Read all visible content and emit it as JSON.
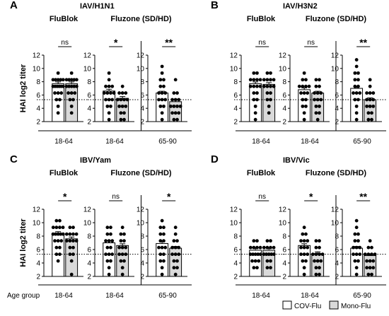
{
  "figure": {
    "row_axis_label": "HAI log2 titer",
    "age_group_label": "Age group",
    "legend": [
      {
        "label": "COV-Flu",
        "color": "#ffffff"
      },
      {
        "label": "Mono-Flu",
        "color": "#d9d9d9"
      }
    ],
    "colors": {
      "cov_fill": "#ffffff",
      "mono_fill": "#d9d9d9",
      "stroke": "#000000",
      "dot": "#000000",
      "threshold_line": "#000000"
    }
  },
  "chart_data": [
    {
      "type": "bar",
      "panel": "A",
      "title": "IAV/H1N1",
      "ylabel": "HAI log2 titer",
      "ylim": [
        2,
        12
      ],
      "yticks": [
        2,
        4,
        6,
        8,
        10,
        12
      ],
      "threshold": 5.3,
      "threshold_style": "dotted",
      "groups": [
        {
          "name": "FluBlok",
          "category": "18-64",
          "cov_mean": 7.7,
          "mono_mean": 7.7,
          "significance": "ns",
          "cov_points": [
            9.3,
            8.3,
            8.3,
            8.3,
            8.3,
            8.3,
            7.3,
            7.3,
            7.3,
            7.3,
            7.3,
            7.3,
            6.3,
            6.3,
            6.3,
            5.3,
            5.3,
            4.3,
            3.3
          ],
          "mono_points": [
            9.3,
            8.3,
            8.3,
            8.3,
            8.3,
            8.3,
            7.3,
            7.3,
            7.3,
            7.3,
            7.3,
            6.3,
            6.3,
            6.3,
            5.3,
            5.3,
            4.3,
            3.3
          ]
        },
        {
          "name": "Fluzone (SD/HD)",
          "category": "18-64",
          "cov_mean": 6.6,
          "mono_mean": 5.5,
          "significance": "*",
          "cov_points": [
            9.3,
            8.3,
            7.3,
            7.3,
            7.3,
            6.3,
            6.3,
            6.3,
            6.3,
            5.3,
            5.3,
            5.3,
            4.3,
            4.3,
            3.3,
            2.3
          ],
          "mono_points": [
            7.3,
            6.3,
            6.3,
            6.3,
            5.3,
            5.3,
            5.3,
            5.3,
            4.3,
            4.3,
            4.3,
            3.3,
            3.3,
            2.3,
            2.3
          ]
        },
        {
          "name": "Fluzone (SD/HD)",
          "category": "65-90",
          "cov_mean": 6.3,
          "mono_mean": 5.0,
          "significance": "**",
          "cov_points": [
            10.3,
            9.3,
            8.3,
            8.3,
            7.3,
            7.3,
            6.3,
            6.3,
            6.3,
            5.3,
            5.3,
            5.3,
            4.3,
            4.3,
            3.3,
            2.3
          ],
          "mono_points": [
            8.3,
            6.3,
            6.3,
            5.3,
            5.3,
            5.3,
            4.3,
            4.3,
            4.3,
            4.3,
            3.3,
            3.3,
            3.3,
            2.3,
            2.3
          ]
        }
      ]
    },
    {
      "type": "bar",
      "panel": "B",
      "title": "IAV/H3N2",
      "ylabel": "",
      "ylim": [
        2,
        12
      ],
      "yticks": [
        2,
        4,
        6,
        8,
        10,
        12
      ],
      "threshold": 5.3,
      "threshold_style": "dotted",
      "groups": [
        {
          "name": "FluBlok",
          "category": "18-64",
          "cov_mean": 7.7,
          "mono_mean": 7.6,
          "significance": "ns",
          "cov_points": [
            9.3,
            9.3,
            8.3,
            8.3,
            8.3,
            8.3,
            7.3,
            7.3,
            7.3,
            7.3,
            6.3,
            6.3,
            5.3,
            5.3,
            4.3,
            3.3,
            2.3
          ],
          "mono_points": [
            9.3,
            9.3,
            8.3,
            8.3,
            8.3,
            8.3,
            7.3,
            7.3,
            7.3,
            7.3,
            6.3,
            6.3,
            5.3,
            5.3,
            4.3,
            3.3
          ]
        },
        {
          "name": "Fluzone (SD/HD)",
          "category": "18-64",
          "cov_mean": 6.8,
          "mono_mean": 6.3,
          "significance": "ns",
          "cov_points": [
            9.3,
            8.3,
            8.3,
            7.3,
            7.3,
            7.3,
            7.3,
            6.3,
            6.3,
            6.3,
            5.3,
            5.3,
            4.3,
            4.3,
            3.3,
            2.3
          ],
          "mono_points": [
            8.3,
            8.3,
            7.3,
            7.3,
            6.3,
            6.3,
            6.3,
            5.3,
            5.3,
            5.3,
            4.3,
            4.3,
            3.3,
            3.3,
            2.3
          ]
        },
        {
          "name": "Fluzone (SD/HD)",
          "category": "65-90",
          "cov_mean": 7.0,
          "mono_mean": 5.3,
          "significance": "**",
          "cov_points": [
            11.3,
            10.3,
            9.3,
            9.3,
            8.3,
            8.3,
            7.3,
            7.3,
            6.3,
            6.3,
            6.3,
            5.3,
            5.3,
            4.3,
            3.3,
            2.3
          ],
          "mono_points": [
            8.3,
            7.3,
            6.3,
            6.3,
            6.3,
            5.3,
            5.3,
            5.3,
            4.3,
            4.3,
            4.3,
            3.3,
            3.3,
            2.3,
            2.3
          ]
        }
      ]
    },
    {
      "type": "bar",
      "panel": "C",
      "title": "IBV/Yam",
      "ylabel": "HAI log2 titer",
      "ylim": [
        2,
        12
      ],
      "yticks": [
        2,
        4,
        6,
        8,
        10,
        12
      ],
      "threshold": 5.3,
      "threshold_style": "dotted",
      "groups": [
        {
          "name": "FluBlok",
          "category": "18-64",
          "cov_mean": 8.4,
          "mono_mean": 7.6,
          "significance": "*",
          "cov_points": [
            10.3,
            10.3,
            9.3,
            9.3,
            9.3,
            9.3,
            8.3,
            8.3,
            8.3,
            8.3,
            8.3,
            7.3,
            7.3,
            7.3,
            6.3,
            6.3,
            5.3,
            5.3,
            4.3
          ],
          "mono_points": [
            9.3,
            9.3,
            8.3,
            8.3,
            8.3,
            8.3,
            7.3,
            7.3,
            7.3,
            7.3,
            6.3,
            6.3,
            5.3,
            5.3,
            4.3,
            2.3
          ]
        },
        {
          "name": "Fluzone (SD/HD)",
          "category": "18-64",
          "cov_mean": 7.0,
          "mono_mean": 6.6,
          "significance": "ns",
          "cov_points": [
            9.3,
            9.3,
            8.3,
            8.3,
            7.3,
            7.3,
            7.3,
            6.3,
            6.3,
            5.3,
            5.3,
            5.3,
            4.3,
            4.3,
            3.3,
            2.3
          ],
          "mono_points": [
            9.3,
            8.3,
            8.3,
            7.3,
            7.3,
            6.3,
            6.3,
            6.3,
            5.3,
            5.3,
            5.3,
            4.3,
            4.3,
            3.3,
            2.3
          ]
        },
        {
          "name": "Fluzone (SD/HD)",
          "category": "65-90",
          "cov_mean": 6.9,
          "mono_mean": 6.2,
          "significance": "*",
          "cov_points": [
            10.3,
            9.3,
            9.3,
            8.3,
            8.3,
            7.3,
            7.3,
            6.3,
            6.3,
            6.3,
            5.3,
            5.3,
            4.3,
            4.3,
            3.3,
            2.3
          ],
          "mono_points": [
            9.3,
            8.3,
            7.3,
            7.3,
            6.3,
            6.3,
            6.3,
            5.3,
            5.3,
            5.3,
            4.3,
            4.3,
            3.3,
            3.3,
            2.3
          ]
        }
      ]
    },
    {
      "type": "bar",
      "panel": "D",
      "title": "IBV/Vic",
      "ylabel": "",
      "ylim": [
        2,
        12
      ],
      "yticks": [
        2,
        4,
        6,
        8,
        10,
        12
      ],
      "threshold": 5.3,
      "threshold_style": "dotted",
      "groups": [
        {
          "name": "FluBlok",
          "category": "18-64",
          "cov_mean": 5.9,
          "mono_mean": 5.9,
          "significance": "ns",
          "cov_points": [
            7.3,
            7.3,
            6.3,
            6.3,
            6.3,
            6.3,
            5.3,
            5.3,
            5.3,
            5.3,
            5.3,
            4.3,
            4.3,
            4.3,
            3.3,
            3.3
          ],
          "mono_points": [
            7.3,
            7.3,
            6.3,
            6.3,
            6.3,
            6.3,
            5.3,
            5.3,
            5.3,
            5.3,
            5.3,
            4.3,
            4.3,
            3.3,
            3.3
          ]
        },
        {
          "name": "Fluzone (SD/HD)",
          "category": "18-64",
          "cov_mean": 6.6,
          "mono_mean": 5.4,
          "significance": "*",
          "cov_points": [
            9.3,
            8.3,
            8.3,
            7.3,
            7.3,
            7.3,
            6.3,
            6.3,
            6.3,
            5.3,
            5.3,
            5.3,
            4.3,
            4.3,
            3.3,
            2.3
          ],
          "mono_points": [
            7.3,
            7.3,
            6.3,
            6.3,
            5.3,
            5.3,
            5.3,
            5.3,
            4.3,
            4.3,
            4.3,
            3.3,
            3.3,
            2.3,
            2.3
          ]
        },
        {
          "name": "Fluzone (SD/HD)",
          "category": "65-90",
          "cov_mean": 6.2,
          "mono_mean": 5.1,
          "significance": "**",
          "cov_points": [
            10.3,
            9.3,
            8.3,
            8.3,
            7.3,
            7.3,
            6.3,
            6.3,
            6.3,
            5.3,
            5.3,
            5.3,
            4.3,
            4.3,
            3.3,
            2.3
          ],
          "mono_points": [
            7.3,
            6.3,
            6.3,
            5.3,
            5.3,
            5.3,
            5.3,
            4.3,
            4.3,
            4.3,
            3.3,
            3.3,
            3.3,
            2.3,
            2.3
          ]
        }
      ]
    }
  ]
}
